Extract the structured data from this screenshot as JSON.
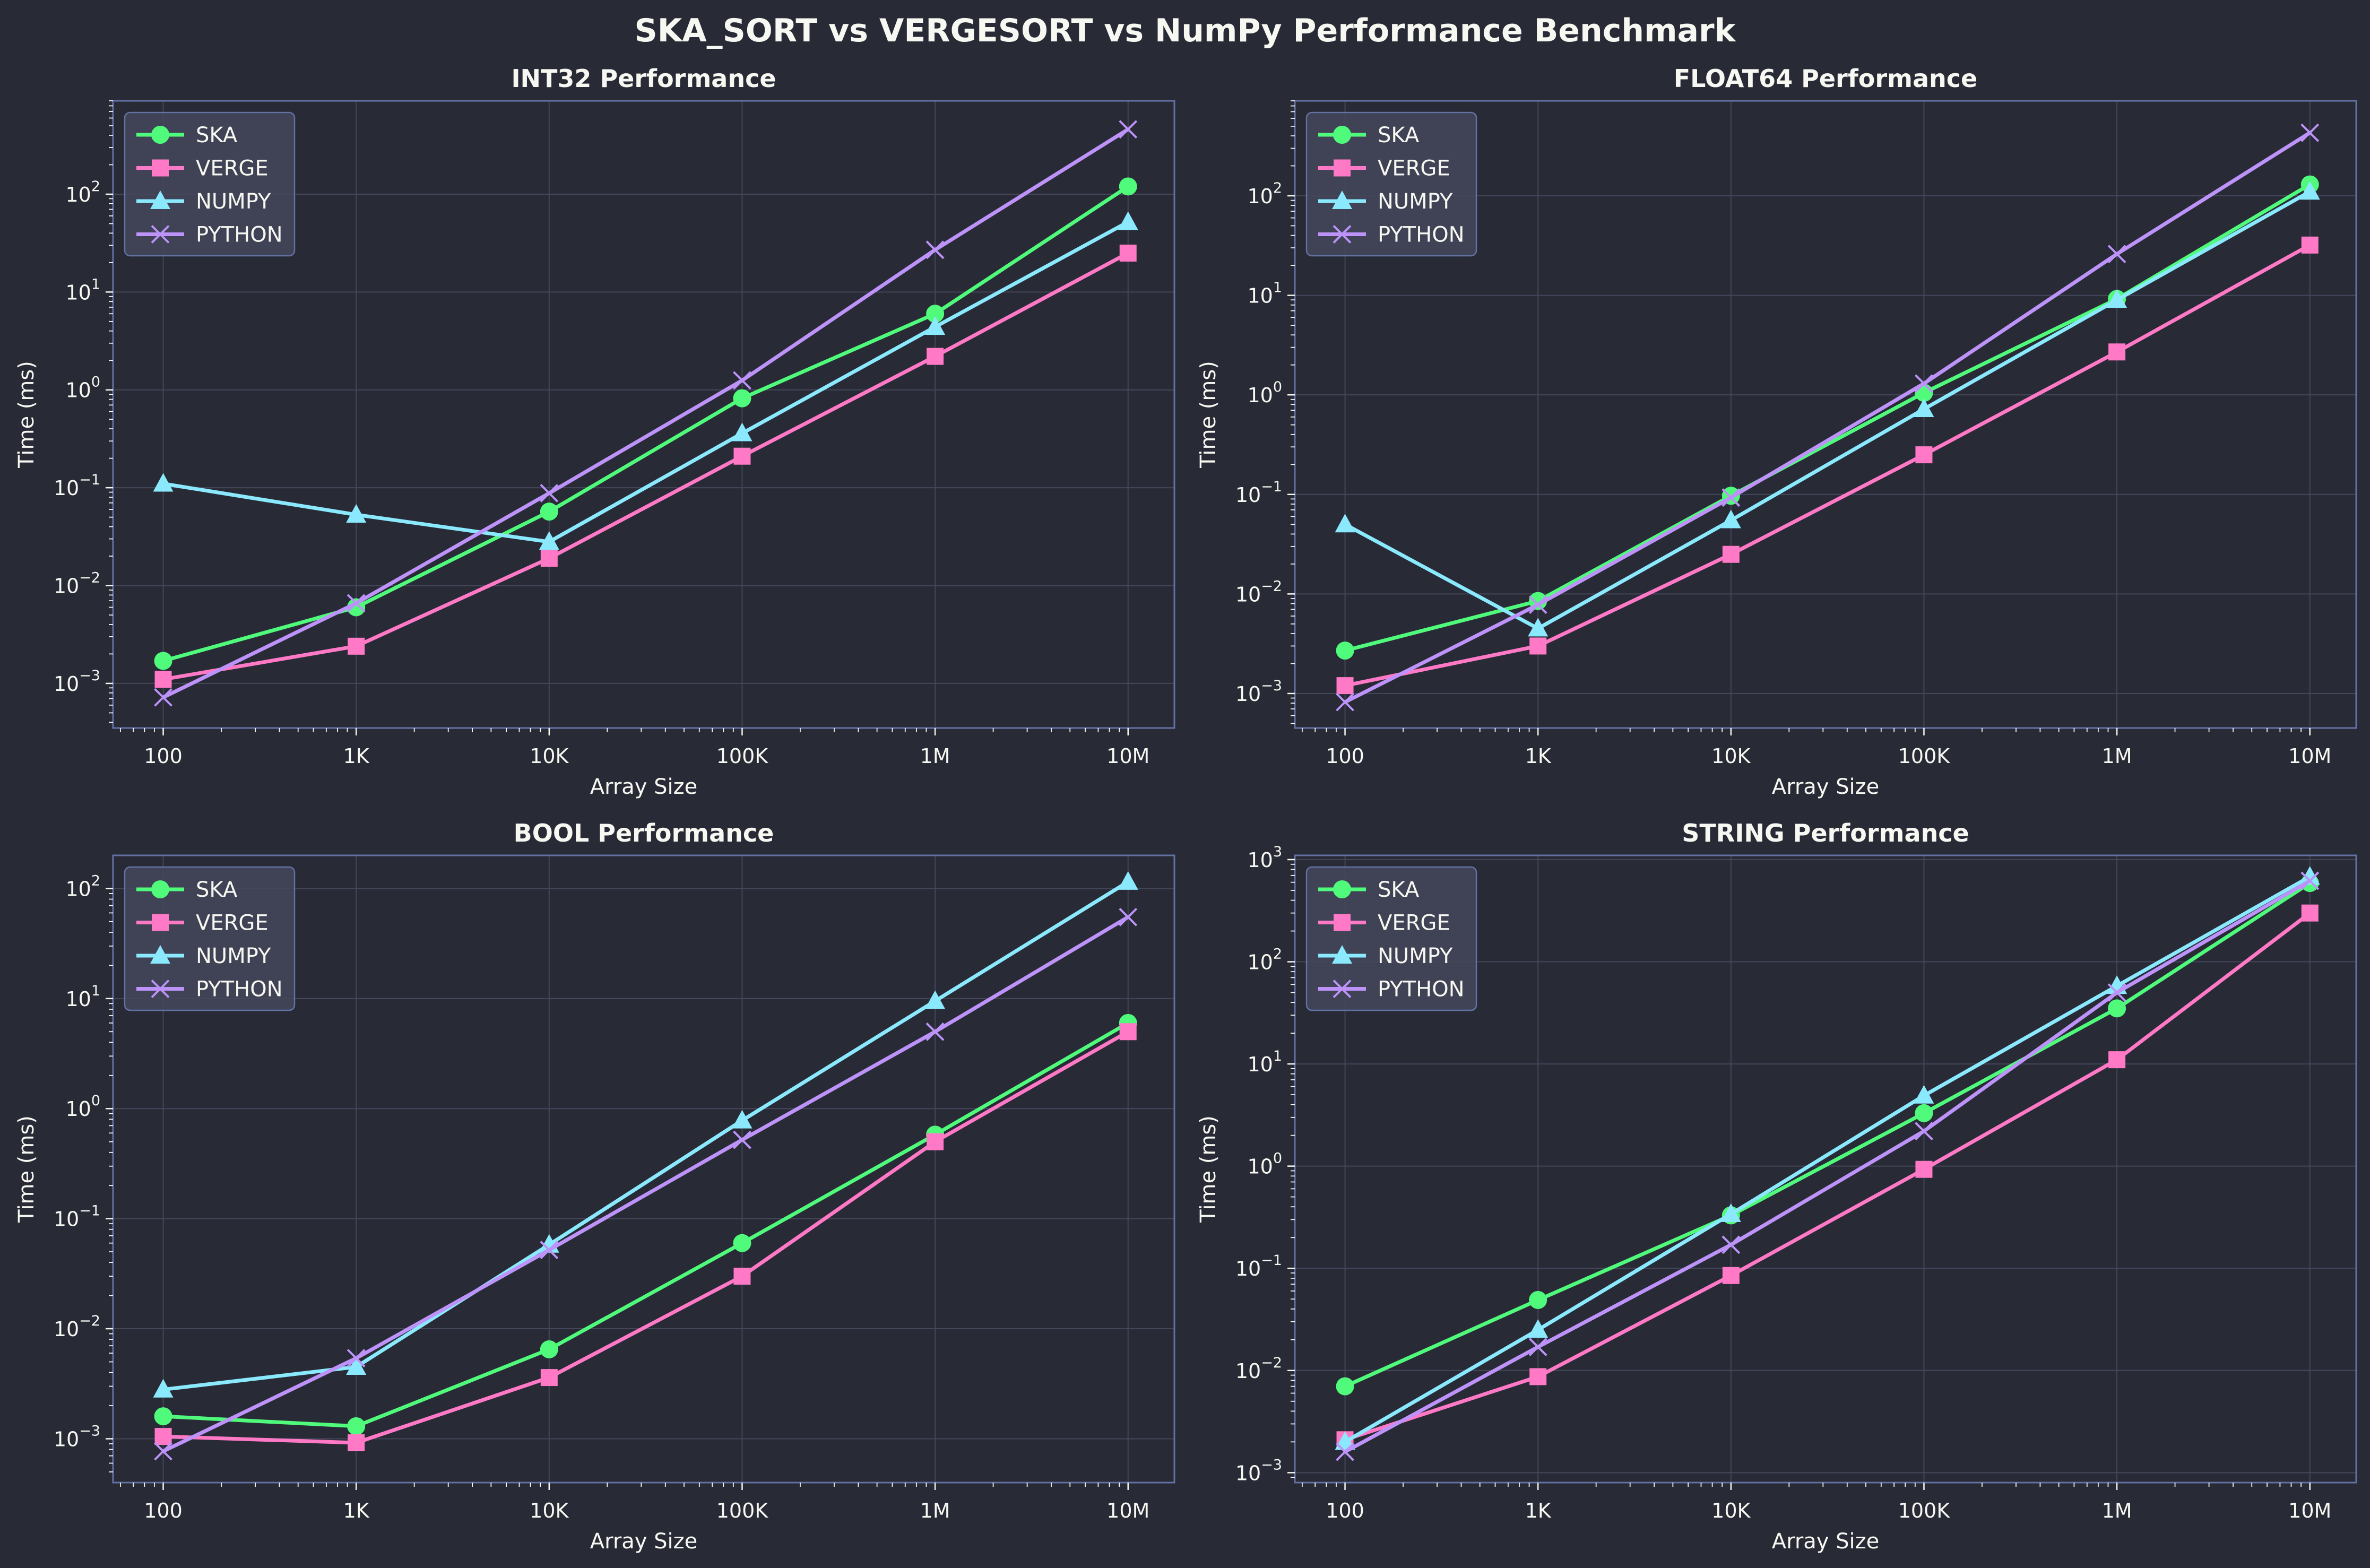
{
  "figure_title": "SKA_SORT vs VERGESORT vs NumPy Performance Benchmark",
  "series_styles": [
    {
      "name": "SKA",
      "color": "#50fa7b",
      "marker": "circle"
    },
    {
      "name": "VERGE",
      "color": "#ff79c6",
      "marker": "square"
    },
    {
      "name": "NUMPY",
      "color": "#8be9fd",
      "marker": "triangle"
    },
    {
      "name": "PYTHON",
      "color": "#bd93f9",
      "marker": "x"
    }
  ],
  "colors": {
    "background": "#282a36",
    "axes_edge": "#6272a4",
    "grid": "#44475a",
    "text": "#f8f8f2",
    "legend_face": "#44475a"
  },
  "chart_data": [
    {
      "type": "line",
      "title": "INT32 Performance",
      "xlabel": "Array Size",
      "ylabel": "Time (ms)",
      "xscale": "log",
      "yscale": "log",
      "categories": [
        "100",
        "1K",
        "10K",
        "100K",
        "1M",
        "10M"
      ],
      "x": [
        100,
        1000,
        10000,
        100000,
        1000000,
        10000000
      ],
      "ylim": [
        0.00035,
        900
      ],
      "yticks": [
        "10^-3",
        "10^-2",
        "10^-1",
        "10^0",
        "10^1",
        "10^2"
      ],
      "legend": "top-left",
      "grid": true,
      "series": [
        {
          "name": "SKA",
          "values": [
            0.0017,
            0.006,
            0.057,
            0.82,
            6.0,
            120
          ]
        },
        {
          "name": "VERGE",
          "values": [
            0.0011,
            0.0024,
            0.019,
            0.21,
            2.2,
            25
          ]
        },
        {
          "name": "NUMPY",
          "values": [
            0.11,
            0.053,
            0.028,
            0.36,
            4.4,
            52
          ]
        },
        {
          "name": "PYTHON",
          "values": [
            0.00072,
            0.0066,
            0.088,
            1.25,
            27,
            460
          ]
        }
      ]
    },
    {
      "type": "line",
      "title": "FLOAT64 Performance",
      "xlabel": "Array Size",
      "ylabel": "Time (ms)",
      "xscale": "log",
      "yscale": "log",
      "categories": [
        "100",
        "1K",
        "10K",
        "100K",
        "1M",
        "10M"
      ],
      "x": [
        100,
        1000,
        10000,
        100000,
        1000000,
        10000000
      ],
      "ylim": [
        0.00045,
        900
      ],
      "yticks": [
        "10^-3",
        "10^-2",
        "10^-1",
        "10^0",
        "10^1",
        "10^2"
      ],
      "legend": "top-left",
      "grid": true,
      "series": [
        {
          "name": "SKA",
          "values": [
            0.0027,
            0.0085,
            0.097,
            1.05,
            9.2,
            130
          ]
        },
        {
          "name": "VERGE",
          "values": [
            0.0012,
            0.003,
            0.025,
            0.25,
            2.7,
            32
          ]
        },
        {
          "name": "NUMPY",
          "values": [
            0.05,
            0.0045,
            0.055,
            0.72,
            9.0,
            110
          ]
        },
        {
          "name": "PYTHON",
          "values": [
            0.00082,
            0.0078,
            0.093,
            1.3,
            26,
            430
          ]
        }
      ]
    },
    {
      "type": "line",
      "title": "BOOL Performance",
      "xlabel": "Array Size",
      "ylabel": "Time (ms)",
      "xscale": "log",
      "yscale": "log",
      "categories": [
        "100",
        "1K",
        "10K",
        "100K",
        "1M",
        "10M"
      ],
      "x": [
        100,
        1000,
        10000,
        100000,
        1000000,
        10000000
      ],
      "ylim": [
        0.0004,
        200
      ],
      "yticks": [
        "10^-3",
        "10^-2",
        "10^-1",
        "10^0",
        "10^1",
        "10^2"
      ],
      "legend": "top-left",
      "grid": true,
      "series": [
        {
          "name": "SKA",
          "values": [
            0.0016,
            0.0013,
            0.0065,
            0.06,
            0.58,
            6.0
          ]
        },
        {
          "name": "VERGE",
          "values": [
            0.00105,
            0.00092,
            0.0036,
            0.03,
            0.5,
            5.0
          ]
        },
        {
          "name": "NUMPY",
          "values": [
            0.0028,
            0.0045,
            0.058,
            0.78,
            9.5,
            115
          ]
        },
        {
          "name": "PYTHON",
          "values": [
            0.00077,
            0.0054,
            0.052,
            0.52,
            5.0,
            55
          ]
        }
      ]
    },
    {
      "type": "line",
      "title": "STRING Performance",
      "xlabel": "Array Size",
      "ylabel": "Time (ms)",
      "xscale": "log",
      "yscale": "log",
      "categories": [
        "100",
        "1K",
        "10K",
        "100K",
        "1M",
        "10M"
      ],
      "x": [
        100,
        1000,
        10000,
        100000,
        1000000,
        10000000
      ],
      "ylim": [
        0.0008,
        1100
      ],
      "yticks": [
        "10^-3",
        "10^-2",
        "10^-1",
        "10^0",
        "10^1",
        "10^2",
        "10^3"
      ],
      "legend": "top-left",
      "grid": true,
      "series": [
        {
          "name": "SKA",
          "values": [
            0.007,
            0.049,
            0.33,
            3.3,
            35,
            590
          ]
        },
        {
          "name": "VERGE",
          "values": [
            0.0021,
            0.0087,
            0.085,
            0.93,
            11,
            300
          ]
        },
        {
          "name": "NUMPY",
          "values": [
            0.002,
            0.025,
            0.34,
            4.9,
            58,
            680
          ]
        },
        {
          "name": "PYTHON",
          "values": [
            0.0016,
            0.017,
            0.17,
            2.2,
            50,
            620
          ]
        }
      ]
    }
  ]
}
